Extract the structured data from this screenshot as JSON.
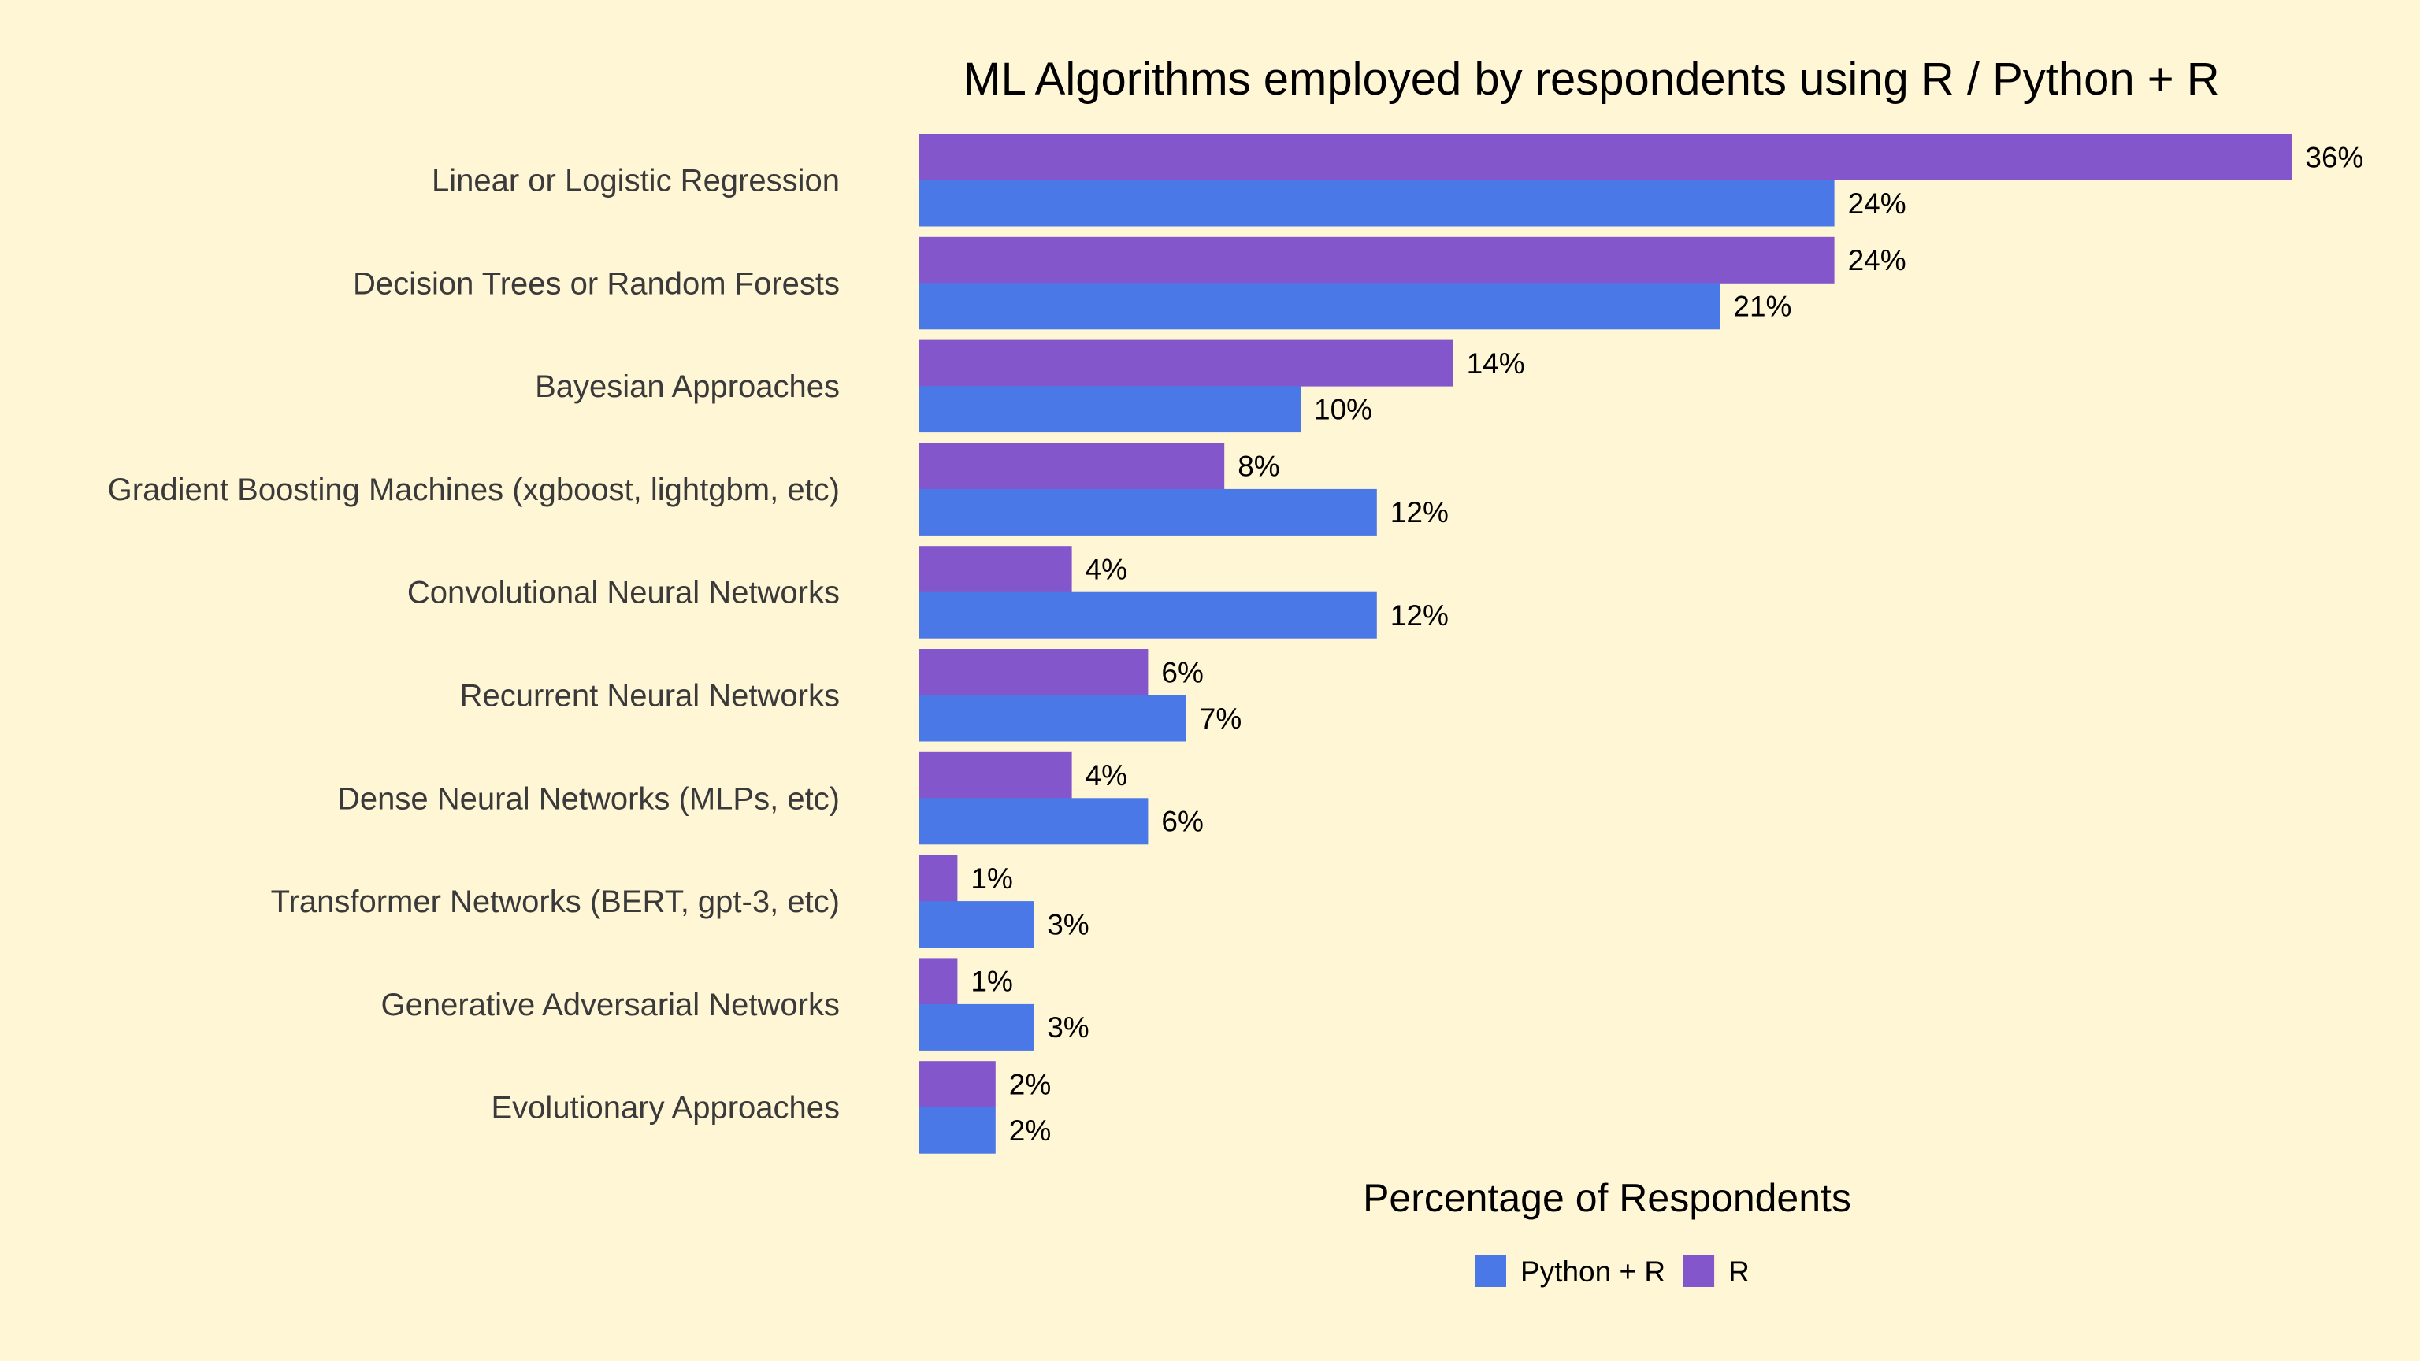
{
  "chart_data": {
    "type": "bar",
    "orientation": "horizontal",
    "title": "ML Algorithms employed by respondents using R / Python + R",
    "xlabel": "Percentage of Respondents",
    "ylabel": "",
    "xlim": [
      0,
      37
    ],
    "grid": false,
    "legend_position": "bottom",
    "value_suffix": "%",
    "categories": [
      "Linear or Logistic Regression",
      "Decision Trees or Random Forests",
      "Bayesian Approaches",
      "Gradient Boosting Machines (xgboost, lightgbm, etc)",
      "Convolutional Neural Networks",
      "Recurrent Neural Networks",
      "Dense Neural Networks (MLPs, etc)",
      "Transformer Networks (BERT, gpt-3, etc)",
      "Generative Adversarial Networks",
      "Evolutionary Approaches"
    ],
    "series": [
      {
        "name": "R",
        "color": "#8356cc",
        "values": [
          36,
          24,
          14,
          8,
          4,
          6,
          4,
          1,
          1,
          2
        ]
      },
      {
        "name": "Python + R",
        "color": "#4a78e6",
        "values": [
          24,
          21,
          10,
          12,
          12,
          7,
          6,
          3,
          3,
          2
        ]
      }
    ],
    "legend": [
      {
        "name": "Python + R",
        "color": "#4a78e6"
      },
      {
        "name": "R",
        "color": "#8356cc"
      }
    ]
  }
}
